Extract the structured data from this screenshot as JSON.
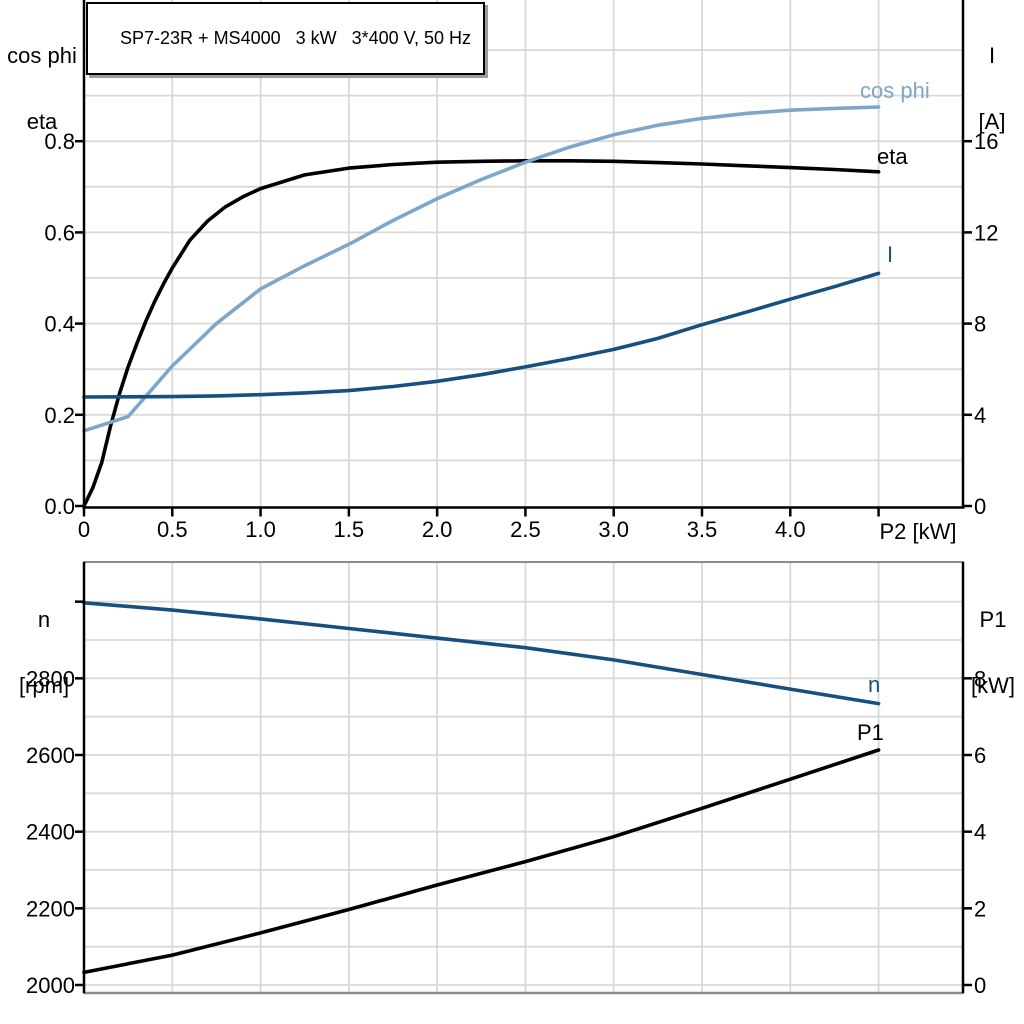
{
  "title": "SP7-23R + MS4000   3 kW   3*400 V, 50 Hz",
  "colors": {
    "black": "#000000",
    "dark_blue": "#17507E",
    "light_blue": "#7EA6C8",
    "grid": "#D8D8D8",
    "border_gray": "#8C8C8C"
  },
  "chart_data": [
    {
      "type": "line",
      "name": "motor-electrical-curves",
      "x_axis": {
        "label": "P2 [kW]",
        "min": 0,
        "max": 4.98,
        "grid_step": 0.5,
        "ticks": [
          {
            "x": 0,
            "label": "0"
          },
          {
            "x": 0.5,
            "label": "0.5"
          },
          {
            "x": 1.0,
            "label": "1.0"
          },
          {
            "x": 1.5,
            "label": "1.5"
          },
          {
            "x": 2.0,
            "label": "2.0"
          },
          {
            "x": 2.5,
            "label": "2.5"
          },
          {
            "x": 3.0,
            "label": "3.0"
          },
          {
            "x": 3.5,
            "label": "3.5"
          },
          {
            "x": 4.0,
            "label": "4.0"
          },
          {
            "x": 4.5,
            "label": ""
          }
        ]
      },
      "y_left": {
        "label_lines": [
          "cos phi",
          "eta"
        ],
        "min": 0,
        "max": 1.11,
        "grid_step": 0.1,
        "ticks": [
          {
            "v": 0.0,
            "label": "0.0"
          },
          {
            "v": 0.2,
            "label": "0.2"
          },
          {
            "v": 0.4,
            "label": "0.4"
          },
          {
            "v": 0.6,
            "label": "0.6"
          },
          {
            "v": 0.8,
            "label": "0.8"
          }
        ]
      },
      "y_right": {
        "label_lines": [
          "I",
          "[A]"
        ],
        "min": 0,
        "max": 22.2,
        "grid_step": 2,
        "ticks": [
          {
            "v": 0,
            "label": "0"
          },
          {
            "v": 4,
            "label": "4"
          },
          {
            "v": 8,
            "label": "8"
          },
          {
            "v": 12,
            "label": "12"
          },
          {
            "v": 16,
            "label": "16"
          }
        ]
      },
      "series": [
        {
          "name": "eta",
          "label": "eta",
          "axis": "left",
          "color_key": "black",
          "x": [
            0,
            0.05,
            0.1,
            0.15,
            0.2,
            0.25,
            0.3,
            0.35,
            0.4,
            0.45,
            0.5,
            0.6,
            0.7,
            0.8,
            0.9,
            1.0,
            1.25,
            1.5,
            1.75,
            2.0,
            2.25,
            2.5,
            2.75,
            3.0,
            3.25,
            3.5,
            3.75,
            4.0,
            4.25,
            4.5
          ],
          "y": [
            0,
            0.04,
            0.095,
            0.175,
            0.245,
            0.305,
            0.357,
            0.405,
            0.448,
            0.487,
            0.522,
            0.583,
            0.625,
            0.656,
            0.678,
            0.696,
            0.726,
            0.741,
            0.749,
            0.754,
            0.756,
            0.757,
            0.757,
            0.756,
            0.753,
            0.75,
            0.746,
            0.742,
            0.738,
            0.733
          ]
        },
        {
          "name": "cos-phi",
          "label": "cos phi",
          "axis": "left",
          "color_key": "light_blue",
          "x": [
            0,
            0.25,
            0.5,
            0.75,
            1.0,
            1.25,
            1.5,
            1.75,
            2.0,
            2.25,
            2.5,
            2.75,
            3.0,
            3.25,
            3.5,
            3.75,
            4.0,
            4.25,
            4.5
          ],
          "y": [
            0.165,
            0.196,
            0.307,
            0.4,
            0.476,
            0.527,
            0.574,
            0.626,
            0.674,
            0.716,
            0.754,
            0.787,
            0.814,
            0.835,
            0.85,
            0.861,
            0.868,
            0.872,
            0.875
          ]
        },
        {
          "name": "I",
          "label": "I",
          "axis": "right",
          "color_key": "dark_blue",
          "x": [
            0,
            0.25,
            0.5,
            0.75,
            1.0,
            1.25,
            1.5,
            1.75,
            2.0,
            2.25,
            2.5,
            2.75,
            3.0,
            3.25,
            3.5,
            3.75,
            4.0,
            4.25,
            4.5
          ],
          "y": [
            4.78,
            4.79,
            4.8,
            4.83,
            4.88,
            4.96,
            5.06,
            5.24,
            5.47,
            5.76,
            6.1,
            6.47,
            6.87,
            7.35,
            7.95,
            8.5,
            9.07,
            9.62,
            10.2
          ]
        }
      ]
    },
    {
      "type": "line",
      "name": "speed-power-curves",
      "x_axis": {
        "label": "",
        "min": 0,
        "max": 4.98,
        "grid_step": 0.5,
        "ticks": []
      },
      "y_left": {
        "label_lines": [
          "n",
          "[rpm]"
        ],
        "min": 1978,
        "max": 3103,
        "grid_step": 100,
        "ticks": [
          {
            "v": 2000,
            "label": "2000"
          },
          {
            "v": 2200,
            "label": "2200"
          },
          {
            "v": 2400,
            "label": "2400"
          },
          {
            "v": 2600,
            "label": "2600"
          },
          {
            "v": 2800,
            "label": "2800"
          },
          {
            "v": 3000,
            "label": ""
          }
        ]
      },
      "y_right": {
        "label_lines": [
          "P1",
          "[kW]"
        ],
        "min": -0.2,
        "max": 11.1,
        "grid_step": 1,
        "ticks": [
          {
            "v": 0,
            "label": "0"
          },
          {
            "v": 2,
            "label": "2"
          },
          {
            "v": 4,
            "label": "4"
          },
          {
            "v": 6,
            "label": "6"
          },
          {
            "v": 8,
            "label": "8"
          }
        ]
      },
      "series": [
        {
          "name": "n",
          "label": "n",
          "axis": "left",
          "color_key": "dark_blue",
          "x": [
            0,
            0.5,
            1.0,
            1.5,
            2.0,
            2.5,
            3.0,
            3.5,
            4.0,
            4.5
          ],
          "y": [
            2997,
            2978,
            2955,
            2930,
            2905,
            2880,
            2848,
            2810,
            2772,
            2734
          ]
        },
        {
          "name": "P1",
          "label": "P1",
          "axis": "right",
          "color_key": "black",
          "x": [
            0,
            0.5,
            1.0,
            1.5,
            2.0,
            2.5,
            3.0,
            3.5,
            4.0,
            4.5
          ],
          "y": [
            0.33,
            0.78,
            1.36,
            1.97,
            2.61,
            3.22,
            3.87,
            4.61,
            5.37,
            6.13
          ]
        }
      ]
    }
  ]
}
